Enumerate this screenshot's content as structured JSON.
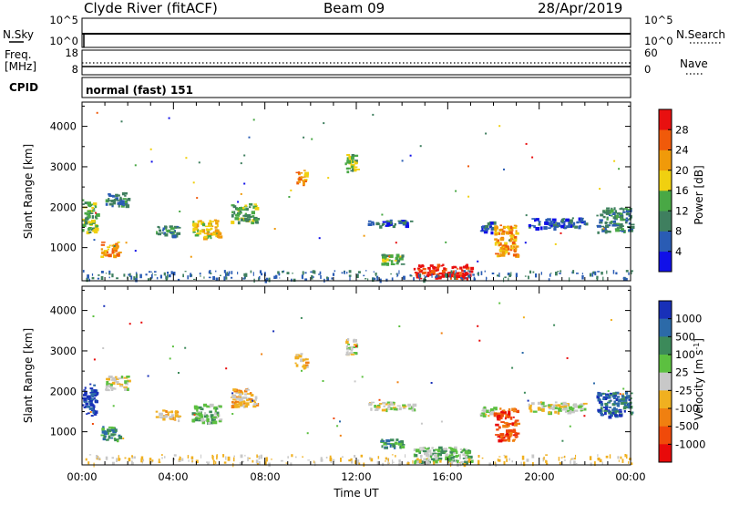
{
  "header": {
    "station": "Clyde River (fitACF)",
    "beam": "Beam 09",
    "date": "28/Apr/2019"
  },
  "top_panel": {
    "left_label": "N.Sky",
    "right_label": "N.Search",
    "left_ticks": [
      "10^5",
      "10^0"
    ],
    "right_ticks": [
      "10^5",
      "10^0"
    ]
  },
  "freq_panel": {
    "left_label_line1": "Freq.",
    "left_label_line2": "[MHz]",
    "right_label": "Nave",
    "left_ticks": [
      "18",
      "8"
    ],
    "right_ticks": [
      "60",
      "0"
    ]
  },
  "cpid": {
    "label": "CPID",
    "value": "normal (fast) 151"
  },
  "axes": {
    "xlabel": "Time UT",
    "ylabel": "Slant Range [km]",
    "x_ticks": [
      "00:00",
      "04:00",
      "08:00",
      "12:00",
      "16:00",
      "20:00",
      "00:00"
    ],
    "y_ticks": [
      "1000",
      "2000",
      "3000",
      "4000"
    ]
  },
  "power_colorbar": {
    "label": "Power [dB]",
    "ticks": [
      "4",
      "8",
      "12",
      "16",
      "20",
      "24",
      "28"
    ],
    "colors": [
      "#1010e8",
      "#2a5cb4",
      "#3f7f5f",
      "#49a845",
      "#f0d010",
      "#f09a0a",
      "#f05a0a",
      "#e81010"
    ]
  },
  "velocity_colorbar": {
    "label_main": "Velocity  [m s",
    "label_exp": "-1",
    "label_close": "]",
    "ticks": [
      "1000",
      "500",
      "100",
      "25",
      "-25",
      "-100",
      "-500",
      "-1000"
    ],
    "colors": [
      "#1830b8",
      "#2c6aa8",
      "#3c8a5a",
      "#5cc040",
      "#c8c8c8",
      "#f0b020",
      "#f08010",
      "#f04a0a",
      "#e80a0a"
    ]
  },
  "chart_data": {
    "type": "heatmap",
    "x_unit": "hours UT",
    "y_unit": "km",
    "xlim": [
      0,
      24
    ],
    "ylim": [
      180,
      4600
    ],
    "power": [
      {
        "t": [
          0.0,
          0.6
        ],
        "r": [
          1400,
          2200
        ],
        "level": 3
      },
      {
        "t": [
          0.8,
          1.6
        ],
        "r": [
          800,
          1150
        ],
        "level": 5
      },
      {
        "t": [
          1.0,
          2.0
        ],
        "r": [
          2050,
          2400
        ],
        "level": 2
      },
      {
        "t": [
          3.2,
          4.2
        ],
        "r": [
          1300,
          1550
        ],
        "level": 2
      },
      {
        "t": [
          4.8,
          6.0
        ],
        "r": [
          1250,
          1700
        ],
        "level": 4
      },
      {
        "t": [
          6.5,
          7.6
        ],
        "r": [
          1650,
          2100
        ],
        "level": 3
      },
      {
        "t": [
          9.3,
          9.8
        ],
        "r": [
          2600,
          2950
        ],
        "level": 5
      },
      {
        "t": [
          11.5,
          12.0
        ],
        "r": [
          2900,
          3350
        ],
        "level": 3
      },
      {
        "t": [
          12.5,
          14.5
        ],
        "r": [
          1550,
          1700
        ],
        "level": 1
      },
      {
        "t": [
          13.0,
          14.0
        ],
        "r": [
          600,
          850
        ],
        "level": 3
      },
      {
        "t": [
          14.5,
          17.0
        ],
        "r": [
          250,
          600
        ],
        "level": 7
      },
      {
        "t": [
          17.4,
          18.0
        ],
        "r": [
          1400,
          1650
        ],
        "level": 1
      },
      {
        "t": [
          18.0,
          19.0
        ],
        "r": [
          800,
          1600
        ],
        "level": 5
      },
      {
        "t": [
          19.5,
          22.0
        ],
        "r": [
          1500,
          1750
        ],
        "level": 1
      },
      {
        "t": [
          22.5,
          24.0
        ],
        "r": [
          1400,
          2000
        ],
        "level": 2
      }
    ],
    "velocity": [
      {
        "t": [
          0.0,
          0.6
        ],
        "r": [
          1400,
          2200
        ],
        "level": 0
      },
      {
        "t": [
          0.8,
          1.6
        ],
        "r": [
          800,
          1150
        ],
        "level": 2
      },
      {
        "t": [
          1.0,
          2.0
        ],
        "r": [
          2050,
          2400
        ],
        "level": 4
      },
      {
        "t": [
          3.2,
          4.2
        ],
        "r": [
          1300,
          1550
        ],
        "level": 5
      },
      {
        "t": [
          4.8,
          6.0
        ],
        "r": [
          1250,
          1700
        ],
        "level": 3
      },
      {
        "t": [
          6.5,
          7.6
        ],
        "r": [
          1650,
          2100
        ],
        "level": 5
      },
      {
        "t": [
          9.3,
          9.8
        ],
        "r": [
          2600,
          2950
        ],
        "level": 5
      },
      {
        "t": [
          11.5,
          12.0
        ],
        "r": [
          2900,
          3350
        ],
        "level": 4
      },
      {
        "t": [
          12.5,
          14.5
        ],
        "r": [
          1550,
          1750
        ],
        "level": 4
      },
      {
        "t": [
          13.0,
          14.0
        ],
        "r": [
          600,
          850
        ],
        "level": 2
      },
      {
        "t": [
          14.5,
          17.0
        ],
        "r": [
          250,
          650
        ],
        "level": 3
      },
      {
        "t": [
          17.4,
          18.0
        ],
        "r": [
          1400,
          1650
        ],
        "level": 4
      },
      {
        "t": [
          18.0,
          19.0
        ],
        "r": [
          800,
          1600
        ],
        "level": 7
      },
      {
        "t": [
          19.5,
          22.0
        ],
        "r": [
          1500,
          1750
        ],
        "level": 4
      },
      {
        "t": [
          22.5,
          24.0
        ],
        "r": [
          1400,
          2000
        ],
        "level": 1
      }
    ]
  }
}
